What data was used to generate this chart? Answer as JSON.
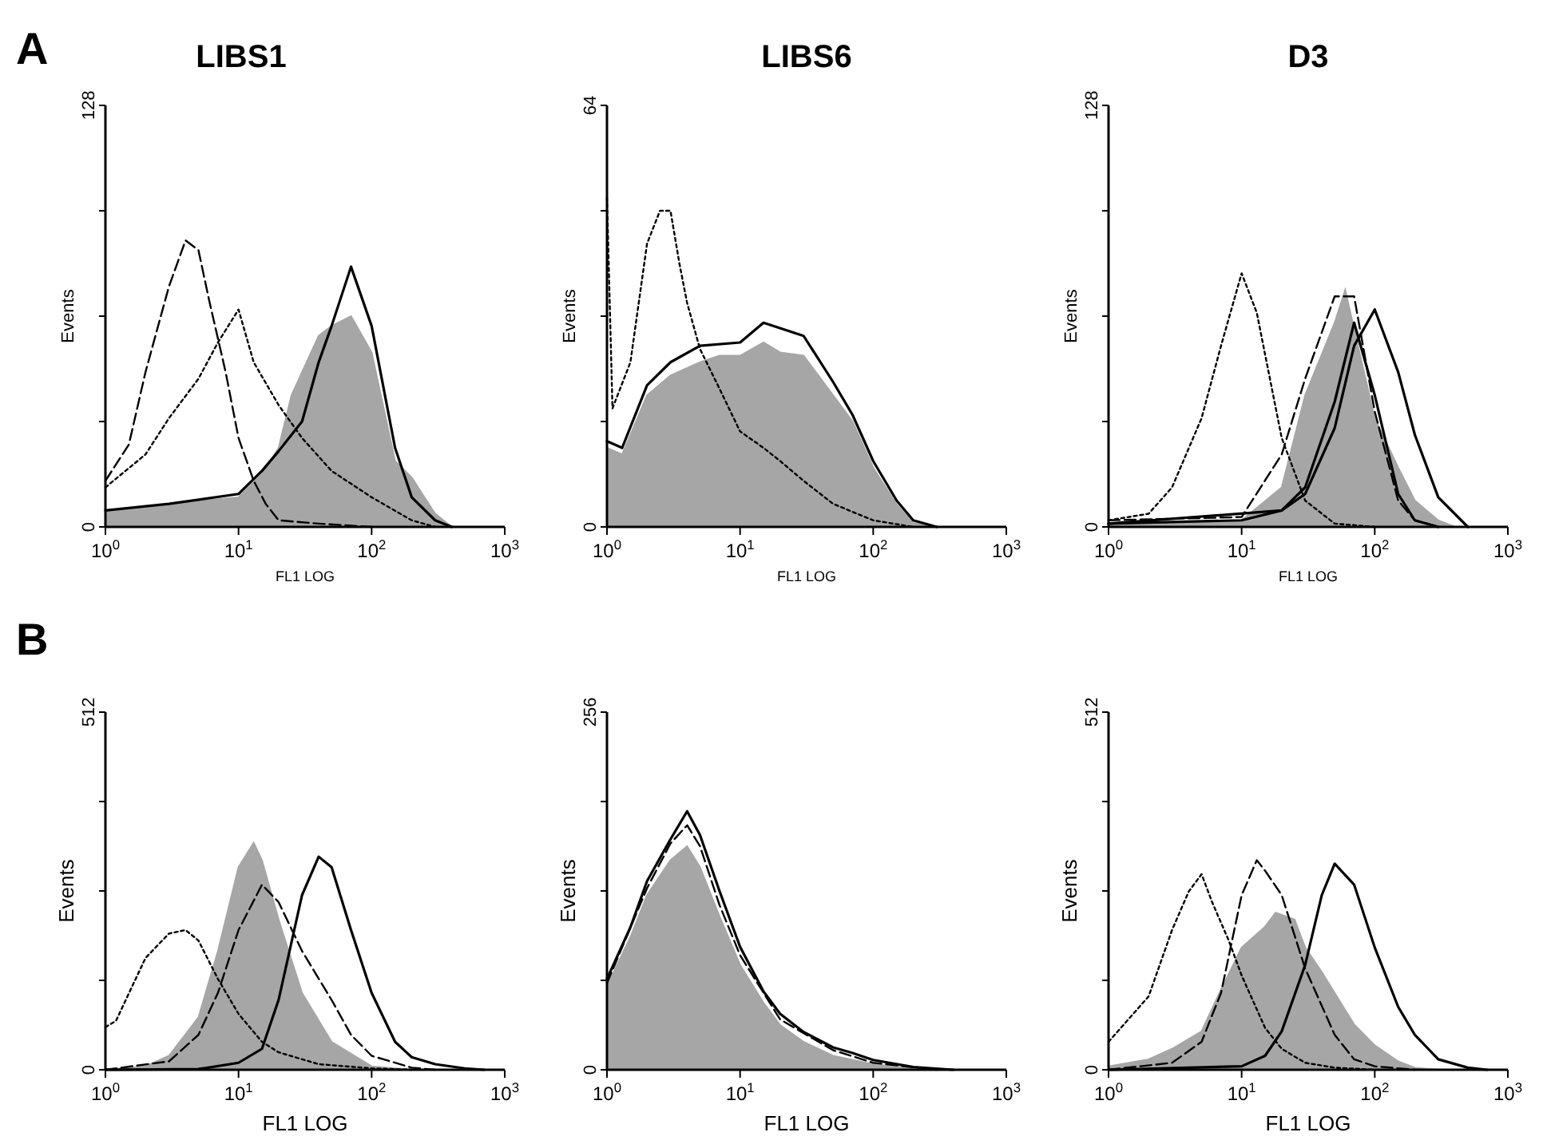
{
  "chart_data": [
    {
      "type": "line",
      "title": "LIBS1",
      "xlabel": "FL1 LOG",
      "ylabel": "Events",
      "annotations": [
        "A"
      ],
      "log": "x",
      "xlim": [
        1,
        1000
      ],
      "ylim": [
        0,
        128
      ],
      "xticks": [
        {
          "value": 1,
          "label": "10$^{0}$"
        },
        {
          "value": 10,
          "label": "10$^{1}$"
        },
        {
          "value": 100,
          "label": "10$^{2}$"
        },
        {
          "value": 1000,
          "label": "10$^{3}$"
        }
      ],
      "yticks": [
        0,
        {
          "value": 32,
          "label": null
        },
        {
          "value": 64,
          "label": null
        },
        {
          "value": 96,
          "label": null
        },
        128
      ],
      "series": [
        {
          "type": "area",
          "color": "#a6a6a6",
          "x": [
            1,
            3,
            10,
            15,
            20,
            25,
            30,
            40,
            50,
            70,
            100,
            150,
            200,
            300,
            400
          ],
          "values": [
            5,
            7,
            9,
            16,
            24,
            40,
            47,
            58,
            61,
            64,
            53,
            20,
            15,
            4,
            0
          ]
        },
        {
          "color": "#000000",
          "line_style": "solid",
          "x": [
            1,
            3,
            10,
            15,
            20,
            30,
            40,
            50,
            70,
            100,
            150,
            200,
            300,
            400
          ],
          "values": [
            5,
            7,
            10,
            17,
            23,
            32,
            50,
            61,
            79,
            61,
            24,
            9,
            2,
            0
          ]
        },
        {
          "color": "#000000",
          "line_style": "dashed",
          "x": [
            1,
            1.5,
            2,
            3,
            4,
            5,
            6,
            8,
            10,
            13,
            16,
            20,
            40,
            100
          ],
          "values": [
            14,
            25,
            47,
            73,
            87,
            84,
            69,
            47,
            27,
            14,
            7,
            2,
            1,
            0
          ]
        },
        {
          "color": "#000000",
          "line_style": "dotted",
          "x": [
            1,
            2,
            3,
            5,
            7,
            10,
            13,
            20,
            30,
            50,
            100,
            200,
            300
          ],
          "values": [
            12,
            22,
            33,
            45,
            56,
            66,
            50,
            37,
            27,
            17,
            9,
            2,
            0
          ]
        }
      ]
    },
    {
      "type": "line",
      "title": "LIBS6",
      "xlabel": "FL1 LOG",
      "ylabel": "Events",
      "log": "x",
      "xlim": [
        1,
        1000
      ],
      "ylim": [
        0,
        64
      ],
      "xticks": [
        {
          "value": 1,
          "label": "10$^{0}$"
        },
        {
          "value": 10,
          "label": "10$^{1}$"
        },
        {
          "value": 100,
          "label": "10$^{2}$"
        },
        {
          "value": 1000,
          "label": "10$^{3}$"
        }
      ],
      "yticks": [
        0,
        {
          "value": 16,
          "label": null
        },
        {
          "value": 32,
          "label": null
        },
        {
          "value": 48,
          "label": null
        },
        64
      ],
      "series": [
        {
          "type": "area",
          "color": "#a6a6a6",
          "x": [
            1,
            1.3,
            2,
            3,
            5,
            7,
            10,
            15,
            20,
            30,
            50,
            70,
            100,
            150,
            200,
            300
          ],
          "values": [
            12,
            11,
            20,
            23,
            25,
            26,
            26,
            28,
            26.5,
            26,
            20,
            16,
            9,
            3.4,
            0.6,
            0
          ]
        },
        {
          "color": "#000000",
          "line_style": "solid",
          "x": [
            1,
            1.3,
            2,
            3,
            5,
            10,
            15,
            30,
            50,
            70,
            100,
            150,
            200,
            300
          ],
          "values": [
            13,
            12,
            21.5,
            25,
            27.5,
            28,
            31,
            29,
            22,
            17,
            10,
            4,
            1,
            0
          ]
        },
        {
          "color": "#000000",
          "line_style": "dotted",
          "x": [
            1,
            1.1,
            1.5,
            2,
            2.5,
            3,
            3.5,
            4,
            5,
            7,
            10,
            15,
            20,
            30,
            50,
            100,
            200
          ],
          "values": [
            50,
            18,
            25,
            43,
            48,
            48,
            40,
            34,
            27,
            21,
            14.5,
            12,
            10,
            7,
            3.5,
            1,
            0
          ]
        }
      ]
    },
    {
      "type": "line",
      "title": "D3",
      "xlabel": "FL1 LOG",
      "ylabel": "Events",
      "log": "x",
      "xlim": [
        1,
        1000
      ],
      "ylim": [
        0,
        128
      ],
      "xticks": [
        {
          "value": 1,
          "label": "10$^{0}$"
        },
        {
          "value": 10,
          "label": "10$^{1}$"
        },
        {
          "value": 100,
          "label": "10$^{2}$"
        },
        {
          "value": 1000,
          "label": "10$^{3}$"
        }
      ],
      "yticks": [
        0,
        {
          "value": 32,
          "label": null
        },
        {
          "value": 64,
          "label": null
        },
        {
          "value": 96,
          "label": null
        },
        128
      ],
      "series": [
        {
          "type": "area",
          "color": "#a6a6a6",
          "x": [
            1,
            10,
            20,
            30,
            50,
            60,
            70,
            100,
            150,
            200,
            300,
            400
          ],
          "values": [
            1,
            2,
            12,
            40,
            62,
            72,
            60,
            33,
            18,
            8,
            2,
            0
          ]
        },
        {
          "color": "#000000",
          "line_style": "dotted",
          "x": [
            1,
            2,
            3,
            5,
            7,
            10,
            13,
            20,
            30,
            50,
            100
          ],
          "values": [
            2,
            4,
            12,
            33,
            55,
            77,
            65,
            27,
            8,
            1,
            0
          ]
        },
        {
          "color": "#000000",
          "line_style": "dashed",
          "x": [
            1,
            10,
            20,
            30,
            50,
            70,
            100,
            150,
            200,
            300
          ],
          "values": [
            2,
            3,
            22,
            45,
            70,
            70,
            35,
            8,
            2,
            0
          ]
        },
        {
          "color": "#000000",
          "line_style": "solid",
          "x": [
            1,
            20,
            30,
            50,
            70,
            100,
            150,
            200,
            300
          ],
          "values": [
            1,
            5,
            12,
            38,
            62,
            40,
            10,
            2,
            0
          ]
        },
        {
          "color": "#000000",
          "line_style": "solid",
          "x": [
            1,
            10,
            20,
            30,
            50,
            70,
            100,
            150,
            200,
            300,
            500
          ],
          "values": [
            1,
            2,
            5,
            10,
            30,
            55,
            66,
            47,
            28,
            9,
            0
          ]
        }
      ]
    },
    {
      "type": "line",
      "xlabel": "FL1 LOG",
      "ylabel": "Events",
      "annotations": [
        "B"
      ],
      "log": "x",
      "xlim": [
        1,
        1000
      ],
      "ylim": [
        0,
        512
      ],
      "xticks": [
        {
          "value": 1,
          "label": "10$^{0}$"
        },
        {
          "value": 10,
          "label": "10$^{1}$"
        },
        {
          "value": 100,
          "label": "10$^{2}$"
        },
        {
          "value": 1000,
          "label": "10$^{3}$"
        }
      ],
      "yticks": [
        0,
        {
          "value": 128,
          "label": null
        },
        {
          "value": 256,
          "label": null
        },
        {
          "value": 384,
          "label": null
        },
        512
      ],
      "series": [
        {
          "type": "area",
          "color": "#a6a6a6",
          "x": [
            1,
            2,
            3,
            5,
            7,
            10,
            13,
            15,
            20,
            30,
            50,
            100,
            200
          ],
          "values": [
            0,
            5,
            20,
            75,
            170,
            290,
            325,
            300,
            215,
            110,
            40,
            5,
            0
          ]
        },
        {
          "color": "#000000",
          "line_style": "dotted",
          "x": [
            1,
            1.2,
            2,
            3,
            4,
            5,
            7,
            10,
            15,
            20,
            40,
            100,
            200
          ],
          "values": [
            61,
            70,
            160,
            195,
            200,
            185,
            130,
            80,
            40,
            25,
            8,
            2,
            0
          ]
        },
        {
          "color": "#000000",
          "line_style": "dashed",
          "x": [
            1,
            3,
            5,
            7,
            10,
            15,
            20,
            30,
            50,
            70,
            100,
            200,
            300
          ],
          "values": [
            0,
            12,
            50,
            110,
            200,
            265,
            240,
            170,
            100,
            50,
            20,
            3,
            0
          ]
        },
        {
          "color": "#000000",
          "line_style": "solid",
          "x": [
            1,
            5,
            10,
            15,
            20,
            30,
            40,
            50,
            70,
            100,
            150,
            200,
            300,
            500,
            700
          ],
          "values": [
            0,
            1,
            10,
            30,
            100,
            250,
            305,
            290,
            200,
            110,
            40,
            18,
            8,
            2,
            0
          ]
        }
      ]
    },
    {
      "type": "line",
      "xlabel": "FL1 LOG",
      "ylabel": "Events",
      "log": "x",
      "xlim": [
        1,
        1000
      ],
      "ylim": [
        0,
        256
      ],
      "xticks": [
        {
          "value": 1,
          "label": "10$^{0}$"
        },
        {
          "value": 10,
          "label": "10$^{1}$"
        },
        {
          "value": 100,
          "label": "10$^{2}$"
        },
        {
          "value": 1000,
          "label": "10$^{3}$"
        }
      ],
      "yticks": [
        0,
        {
          "value": 64,
          "label": null
        },
        {
          "value": 128,
          "label": null
        },
        {
          "value": 192,
          "label": null
        },
        256
      ],
      "series": [
        {
          "type": "area",
          "color": "#a6a6a6",
          "x": [
            1,
            1.5,
            2,
            3,
            4,
            5,
            7,
            10,
            15,
            20,
            30,
            50,
            100,
            200,
            300
          ],
          "values": [
            60,
            95,
            125,
            150,
            160,
            145,
            110,
            75,
            48,
            32,
            20,
            10,
            4,
            1,
            0
          ]
        },
        {
          "color": "#000000",
          "line_style": "dashed",
          "x": [
            1,
            2,
            3,
            4,
            5,
            7,
            10,
            20,
            50,
            100,
            300
          ],
          "values": [
            62,
            130,
            162,
            175,
            160,
            118,
            82,
            36,
            14,
            5,
            0
          ]
        },
        {
          "color": "#000000",
          "line_style": "solid",
          "x": [
            1,
            1.5,
            2,
            3,
            4,
            5,
            7,
            10,
            15,
            20,
            30,
            50,
            70,
            100,
            200,
            400
          ],
          "values": [
            65,
            102,
            135,
            165,
            185,
            168,
            128,
            88,
            56,
            40,
            27,
            16,
            12,
            7,
            2,
            0
          ]
        }
      ]
    },
    {
      "type": "line",
      "xlabel": "FL1 LOG",
      "ylabel": "Events",
      "log": "x",
      "xlim": [
        1,
        1000
      ],
      "ylim": [
        0,
        512
      ],
      "xticks": [
        {
          "value": 1,
          "label": "10$^{0}$"
        },
        {
          "value": 10,
          "label": "10$^{1}$"
        },
        {
          "value": 100,
          "label": "10$^{2}$"
        },
        {
          "value": 1000,
          "label": "10$^{3}$"
        }
      ],
      "yticks": [
        0,
        {
          "value": 128,
          "label": null
        },
        {
          "value": 256,
          "label": null
        },
        {
          "value": 384,
          "label": null
        },
        512
      ],
      "series": [
        {
          "type": "area",
          "color": "#a6a6a6",
          "x": [
            1,
            2,
            3,
            5,
            7,
            10,
            15,
            18,
            25,
            30,
            40,
            50,
            70,
            100,
            150,
            200,
            300
          ],
          "values": [
            5,
            15,
            30,
            55,
            115,
            175,
            205,
            225,
            215,
            175,
            140,
            110,
            65,
            35,
            12,
            3,
            0
          ]
        },
        {
          "color": "#000000",
          "line_style": "dotted",
          "x": [
            1,
            2,
            3,
            4,
            5,
            6,
            8,
            10,
            15,
            20,
            30,
            50,
            100
          ],
          "values": [
            40,
            105,
            200,
            255,
            280,
            240,
            185,
            135,
            60,
            30,
            10,
            3,
            0
          ]
        },
        {
          "color": "#000000",
          "line_style": "dashed",
          "x": [
            1,
            3,
            5,
            7,
            10,
            13,
            15,
            20,
            30,
            50,
            70,
            100,
            200
          ],
          "values": [
            0,
            10,
            40,
            110,
            250,
            300,
            285,
            250,
            145,
            50,
            15,
            5,
            0
          ]
        },
        {
          "color": "#000000",
          "line_style": "solid",
          "x": [
            1,
            10,
            15,
            20,
            30,
            40,
            50,
            70,
            100,
            150,
            200,
            300,
            500,
            700
          ],
          "values": [
            0,
            5,
            20,
            55,
            150,
            250,
            295,
            265,
            175,
            90,
            50,
            15,
            3,
            0
          ]
        }
      ]
    }
  ]
}
